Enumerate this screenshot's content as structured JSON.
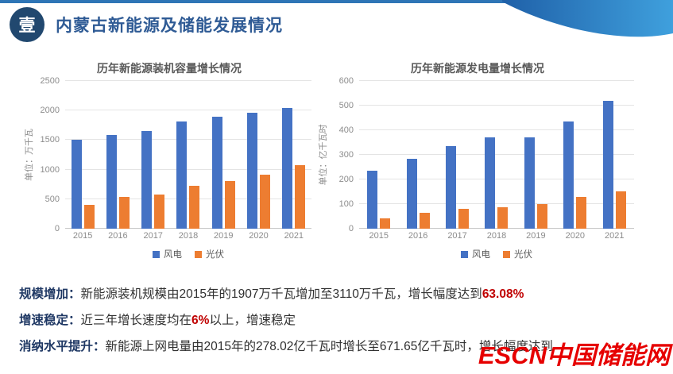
{
  "page": {
    "section_number": "壹",
    "title": "内蒙古新能源及储能发展情况"
  },
  "colors": {
    "top_strip": "#2e75b6",
    "swoosh_dark": "#1f60a8",
    "swoosh_light": "#3fa0dd",
    "section_circle": "#21486f",
    "title_blue": "#2f5b95",
    "wind_blue": "#4472c4",
    "solar_orange": "#ed7d31",
    "bullet_label_navy": "#1f3864",
    "highlight_red": "#c00000",
    "watermark_red": "#e60000"
  },
  "chart_data": [
    {
      "type": "bar",
      "title": "历年新能源装机容量增长情况",
      "ylabel": "单位：万千瓦",
      "categories": [
        "2015",
        "2016",
        "2017",
        "2018",
        "2019",
        "2020",
        "2021"
      ],
      "series": [
        {
          "name": "风电",
          "color": "#4472c4",
          "values": [
            1500,
            1590,
            1650,
            1820,
            1890,
            1960,
            2040
          ]
        },
        {
          "name": "光伏",
          "color": "#ed7d31",
          "values": [
            410,
            540,
            580,
            720,
            810,
            910,
            1070
          ]
        }
      ],
      "ylim": [
        0,
        2500
      ],
      "yticks": [
        0,
        500,
        1000,
        1500,
        2000,
        2500
      ],
      "grid": true,
      "legend_position": "bottom"
    },
    {
      "type": "bar",
      "title": "历年新能源发电量增长情况",
      "ylabel": "单位：亿千瓦时",
      "categories": [
        "2015",
        "2016",
        "2017",
        "2018",
        "2019",
        "2020",
        "2021"
      ],
      "series": [
        {
          "name": "风电",
          "color": "#4472c4",
          "values": [
            237,
            285,
            335,
            372,
            370,
            437,
            519
          ]
        },
        {
          "name": "光伏",
          "color": "#ed7d31",
          "values": [
            41,
            64,
            82,
            88,
            100,
            128,
            153
          ]
        }
      ],
      "ylim": [
        0,
        600
      ],
      "yticks": [
        0,
        100,
        200,
        300,
        400,
        500,
        600
      ],
      "grid": true,
      "legend_position": "bottom"
    }
  ],
  "bullets": [
    {
      "label": "规模增加：",
      "segments": [
        {
          "text": "新能源装机规模由2015年的1907万千瓦增加至3110万千瓦，增长幅度达到",
          "style": "normal"
        },
        {
          "text": "63.08%",
          "style": "red"
        }
      ]
    },
    {
      "label": "增速稳定：",
      "segments": [
        {
          "text": "近三年增长速度均在",
          "style": "normal"
        },
        {
          "text": "6%",
          "style": "red"
        },
        {
          "text": "以上，增速稳定",
          "style": "normal"
        }
      ]
    },
    {
      "label": "消纳水平提升：",
      "segments": [
        {
          "text": "新能源上网电量由2015年的278.02亿千瓦时增长至671.65亿千瓦时，增长幅度达到",
          "style": "normal"
        }
      ]
    }
  ],
  "watermark": "ESCN中国储能网"
}
